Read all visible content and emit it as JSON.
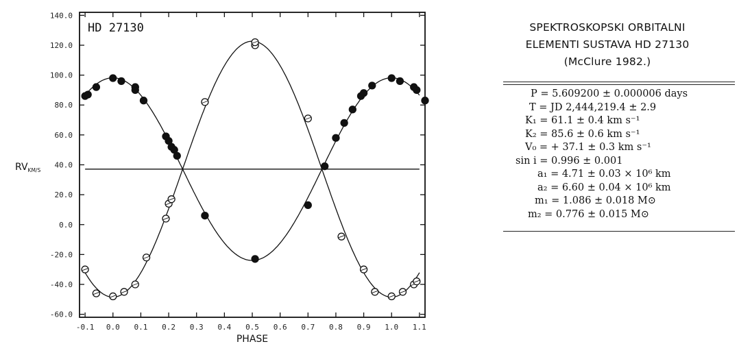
{
  "chart_data": {
    "type": "scatter",
    "title": "HD 27130",
    "xlabel": "PHASE",
    "ylabel": "RV",
    "ylabel_sub": "KM/S",
    "xlim": [
      -0.12,
      1.12
    ],
    "ylim": [
      -62,
      142
    ],
    "x_ticks": [
      -0.1,
      0.0,
      0.1,
      0.2,
      0.3,
      0.4,
      0.5,
      0.6,
      0.7,
      0.8,
      0.9,
      1.0,
      1.1
    ],
    "x_tick_labels": [
      "-0.1",
      "0.0",
      "0.1",
      "0.2",
      "0.3",
      "0.4",
      "0.5",
      "0.6",
      "0.7",
      "0.8",
      "0.9",
      "1.0",
      "1.1"
    ],
    "y_ticks": [
      140,
      120,
      100,
      80,
      60,
      40,
      20,
      0,
      -20,
      -40,
      -60
    ],
    "y_tick_labels": [
      "140.0",
      "120.0",
      "100.0",
      "80.0",
      "60.0",
      "40.0",
      "20.0",
      "0.0",
      "-20.0",
      "-40.0",
      "-60.0"
    ],
    "grid": false,
    "systemic_velocity": 37.1,
    "model_curves": [
      {
        "K": 61.1,
        "zero_phase": 0.0
      },
      {
        "K": -85.6,
        "zero_phase": 0.0
      }
    ],
    "series": [
      {
        "marker": "filled-circle",
        "points": [
          [
            -0.1,
            86
          ],
          [
            -0.09,
            87
          ],
          [
            -0.06,
            92
          ],
          [
            0.0,
            98
          ],
          [
            0.03,
            96
          ],
          [
            0.08,
            92
          ],
          [
            0.08,
            90
          ],
          [
            0.11,
            83
          ],
          [
            0.19,
            59
          ],
          [
            0.2,
            56
          ],
          [
            0.21,
            52
          ],
          [
            0.22,
            50
          ],
          [
            0.23,
            46
          ],
          [
            0.33,
            6
          ],
          [
            0.51,
            -23
          ],
          [
            0.7,
            13
          ],
          [
            0.76,
            39
          ],
          [
            0.8,
            58
          ],
          [
            0.83,
            68
          ],
          [
            0.86,
            77
          ],
          [
            0.89,
            86
          ],
          [
            0.9,
            88
          ],
          [
            0.93,
            93
          ],
          [
            1.0,
            98
          ],
          [
            1.03,
            96
          ],
          [
            1.08,
            92
          ],
          [
            1.09,
            90
          ],
          [
            1.12,
            83
          ]
        ]
      },
      {
        "marker": "open-circle",
        "points": [
          [
            -0.1,
            -30
          ],
          [
            -0.06,
            -46
          ],
          [
            0.0,
            -48
          ],
          [
            0.04,
            -45
          ],
          [
            0.08,
            -40
          ],
          [
            0.12,
            -22
          ],
          [
            0.19,
            4
          ],
          [
            0.2,
            14
          ],
          [
            0.21,
            17
          ],
          [
            0.33,
            82
          ],
          [
            0.51,
            120
          ],
          [
            0.51,
            122
          ],
          [
            0.7,
            71
          ],
          [
            0.82,
            -8
          ],
          [
            0.9,
            -30
          ],
          [
            0.94,
            -45
          ],
          [
            1.0,
            -48
          ],
          [
            1.04,
            -45
          ],
          [
            1.08,
            -40
          ],
          [
            1.09,
            -38
          ]
        ]
      }
    ]
  },
  "elements_panel": {
    "heading_lines": [
      "SPEKTROSKOPSKI ORBITALNI",
      "ELEMENTI SUSTAVA HD 27130",
      "(McClure 1982.)"
    ],
    "rows": [
      "P = 5.609200 ± 0.000006 days",
      "T = JD 2,444,219.4 ± 2.9",
      "K₁ = 61.1 ± 0.4 km s⁻¹",
      "K₂ = 85.6 ± 0.6 km s⁻¹",
      "V₀ = + 37.1 ± 0.3 km s⁻¹",
      "sin i = 0.996 ± 0.001",
      "a₁ = 4.71 ± 0.03 × 10⁶ km",
      "a₂ = 6.60 ± 0.04 × 10⁶ km",
      "m₁ = 1.086 ± 0.018 M⊙",
      "m₂ = 0.776 ± 0.015 M⊙"
    ]
  }
}
